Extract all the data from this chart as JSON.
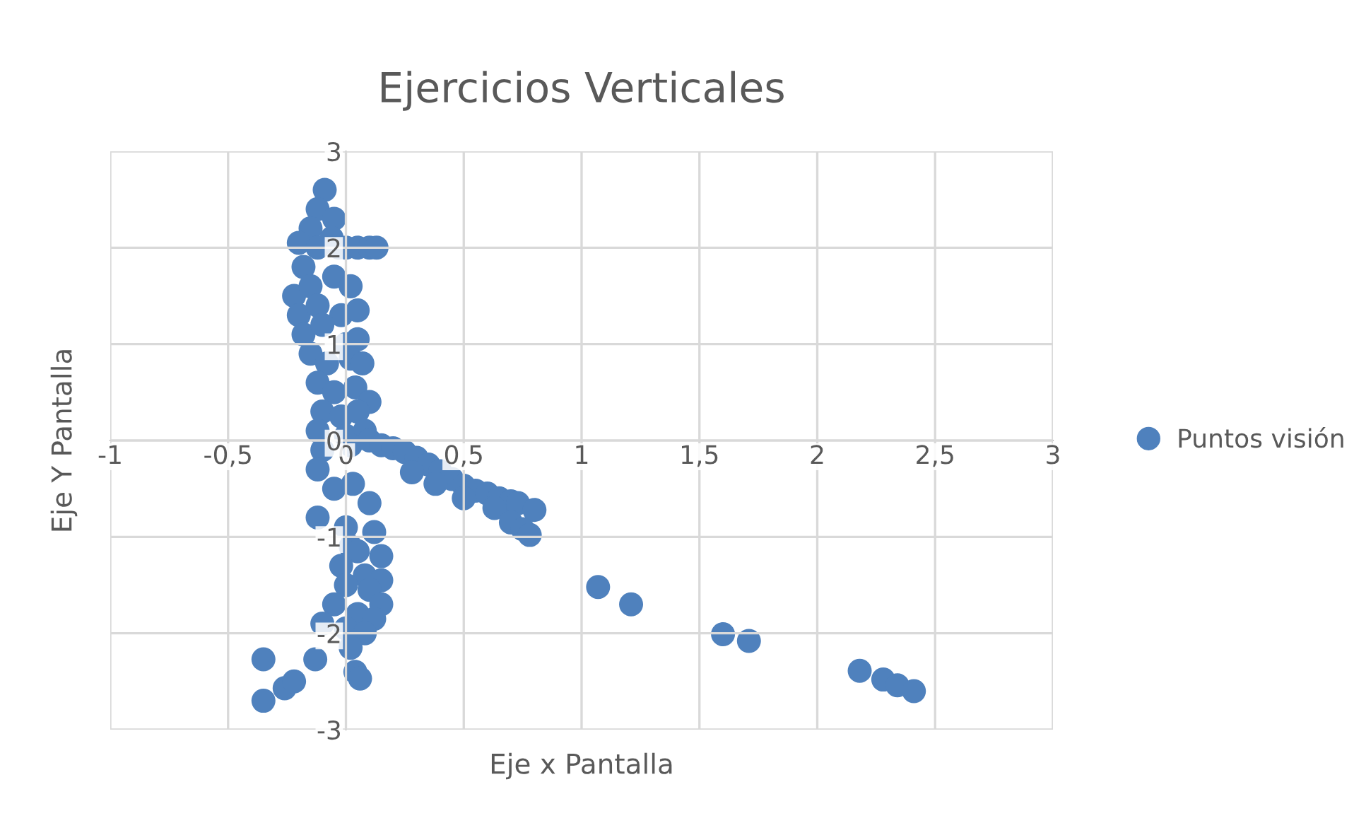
{
  "chart_data": {
    "type": "scatter",
    "title": "Ejercicios Verticales",
    "xlabel": "Eje x Pantalla",
    "ylabel": "Eje Y Pantalla",
    "xlim": [
      -1,
      3
    ],
    "ylim": [
      -3,
      3
    ],
    "xticks": [
      {
        "value": -1,
        "label": "-1"
      },
      {
        "value": -0.5,
        "label": "-0,5"
      },
      {
        "value": 0,
        "label": "0"
      },
      {
        "value": 0.5,
        "label": "0,5"
      },
      {
        "value": 1,
        "label": "1"
      },
      {
        "value": 1.5,
        "label": "1,5"
      },
      {
        "value": 2,
        "label": "2"
      },
      {
        "value": 2.5,
        "label": "2,5"
      },
      {
        "value": 3,
        "label": "3"
      }
    ],
    "yticks": [
      -3,
      -2,
      -1,
      0,
      1,
      2,
      3
    ],
    "grid": true,
    "legend": "right",
    "marker": "circle",
    "series": [
      {
        "name": "Puntos visión",
        "color": "#4f81bd",
        "x": [
          -0.09,
          -0.12,
          -0.05,
          -0.15,
          -0.06,
          -0.2,
          -0.12,
          -0.03,
          0.0,
          0.05,
          0.1,
          0.13,
          -0.18,
          -0.22,
          -0.15,
          -0.05,
          0.02,
          -0.2,
          -0.12,
          -0.02,
          0.05,
          -0.18,
          -0.1,
          0.0,
          0.05,
          -0.15,
          -0.08,
          0.02,
          0.07,
          -0.12,
          -0.05,
          0.04,
          0.1,
          -0.1,
          -0.02,
          0.05,
          -0.12,
          0.0,
          0.08,
          -0.1,
          0.02,
          0.1,
          0.15,
          0.2,
          0.25,
          0.3,
          0.35,
          0.4,
          0.45,
          0.5,
          0.55,
          0.6,
          0.65,
          0.7,
          0.73,
          0.8,
          0.28,
          0.38,
          0.5,
          0.63,
          0.7,
          0.75,
          0.78,
          1.07,
          1.21,
          1.6,
          1.71,
          2.18,
          2.28,
          2.34,
          2.41,
          -0.12,
          -0.05,
          0.03,
          -0.12,
          0.1,
          0.0,
          0.12,
          0.02,
          0.05,
          0.15,
          -0.02,
          0.08,
          0.15,
          0.0,
          0.1,
          0.15,
          -0.05,
          0.05,
          0.12,
          0.0,
          0.08,
          -0.1,
          0.02,
          -0.13,
          0.04,
          0.06,
          -0.35,
          -0.35,
          -0.26,
          -0.22
        ],
        "values": [
          2.6,
          2.4,
          2.3,
          2.2,
          2.1,
          2.05,
          2.0,
          2.0,
          2.0,
          2.0,
          2.0,
          2.0,
          1.8,
          1.5,
          1.6,
          1.7,
          1.6,
          1.3,
          1.4,
          1.3,
          1.35,
          1.1,
          1.2,
          1.0,
          1.05,
          0.9,
          0.8,
          0.85,
          0.8,
          0.6,
          0.5,
          0.55,
          0.4,
          0.3,
          0.25,
          0.3,
          0.1,
          0.05,
          0.1,
          -0.1,
          -0.05,
          0.0,
          -0.05,
          -0.08,
          -0.12,
          -0.18,
          -0.25,
          -0.32,
          -0.4,
          -0.47,
          -0.52,
          -0.55,
          -0.6,
          -0.63,
          -0.65,
          -0.72,
          -0.33,
          -0.45,
          -0.6,
          -0.7,
          -0.85,
          -0.92,
          -0.98,
          -1.52,
          -1.7,
          -2.01,
          -2.08,
          -2.39,
          -2.48,
          -2.54,
          -2.6,
          -0.3,
          -0.5,
          -0.45,
          -0.8,
          -0.65,
          -0.9,
          -0.95,
          -1.1,
          -1.15,
          -1.2,
          -1.3,
          -1.4,
          -1.45,
          -1.5,
          -1.55,
          -1.7,
          -1.7,
          -1.8,
          -1.85,
          -1.95,
          -2.0,
          -1.9,
          -2.15,
          -2.27,
          -2.4,
          -2.47,
          -2.27,
          -2.7,
          -2.57,
          -2.5
        ]
      }
    ]
  }
}
